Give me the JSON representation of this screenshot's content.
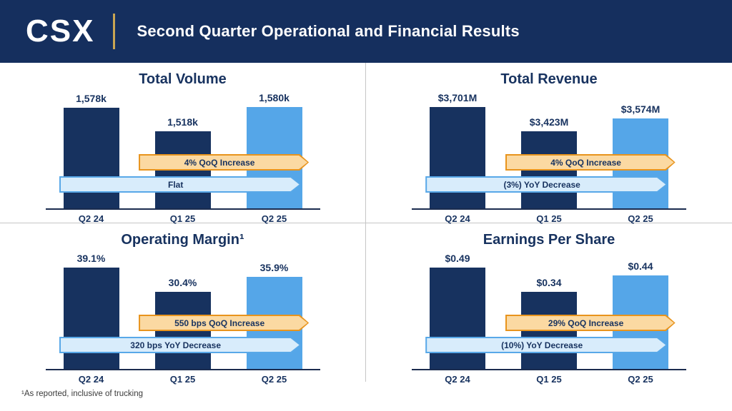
{
  "header": {
    "logo": "CSX",
    "title": "Second Quarter Operational and Financial Results"
  },
  "footer": {
    "note": "¹As reported, inclusive of trucking"
  },
  "colors": {
    "header_navy": "#152f5e",
    "bar_primary": "#17325f",
    "bar_highlight": "#55a6e8",
    "badge_orange_border": "#e8941d",
    "badge_orange_fill": "#fbd9a2",
    "badge_blue_border": "#58a8e8",
    "badge_blue_fill": "#d8ecfb",
    "header_divider_gold": "#c9a553",
    "grid_line": "#c6c6c6",
    "text_navy": "#17325f"
  },
  "chart_data": [
    {
      "id": "total-volume",
      "type": "bar",
      "title": "Total Volume",
      "categories": [
        "Q2 24",
        "Q1 25",
        "Q2 25"
      ],
      "values": [
        1578,
        1518,
        1580
      ],
      "value_labels": [
        "1,578k",
        "1,518k",
        "1,580k"
      ],
      "highlight_index": 2,
      "grid": false,
      "badges": [
        {
          "label": "4% QoQ Increase",
          "style": "orange"
        },
        {
          "label": "Flat",
          "style": "blue"
        }
      ]
    },
    {
      "id": "total-revenue",
      "type": "bar",
      "title": "Total Revenue",
      "categories": [
        "Q2 24",
        "Q1 25",
        "Q2 25"
      ],
      "values": [
        3701,
        3423,
        3574
      ],
      "value_labels": [
        "$3,701M",
        "$3,423M",
        "$3,574M"
      ],
      "highlight_index": 2,
      "grid": false,
      "badges": [
        {
          "label": "4% QoQ Increase",
          "style": "orange"
        },
        {
          "label": "(3%) YoY Decrease",
          "style": "blue"
        }
      ]
    },
    {
      "id": "operating-margin",
      "type": "bar",
      "title": "Operating Margin¹",
      "categories": [
        "Q2 24",
        "Q1 25",
        "Q2 25"
      ],
      "values": [
        39.1,
        30.4,
        35.9
      ],
      "value_labels": [
        "39.1%",
        "30.4%",
        "35.9%"
      ],
      "highlight_index": 2,
      "grid": false,
      "badges": [
        {
          "label": "550 bps QoQ Increase",
          "style": "orange"
        },
        {
          "label": "320 bps YoY Decrease",
          "style": "blue"
        }
      ]
    },
    {
      "id": "earnings-per-share",
      "type": "bar",
      "title": "Earnings Per Share",
      "categories": [
        "Q2 24",
        "Q1 25",
        "Q2 25"
      ],
      "values": [
        0.49,
        0.34,
        0.44
      ],
      "value_labels": [
        "$0.49",
        "$0.34",
        "$0.44"
      ],
      "highlight_index": 2,
      "grid": false,
      "badges": [
        {
          "label": "29% QoQ Increase",
          "style": "orange"
        },
        {
          "label": "(10%) YoY Decrease",
          "style": "blue"
        }
      ]
    }
  ]
}
